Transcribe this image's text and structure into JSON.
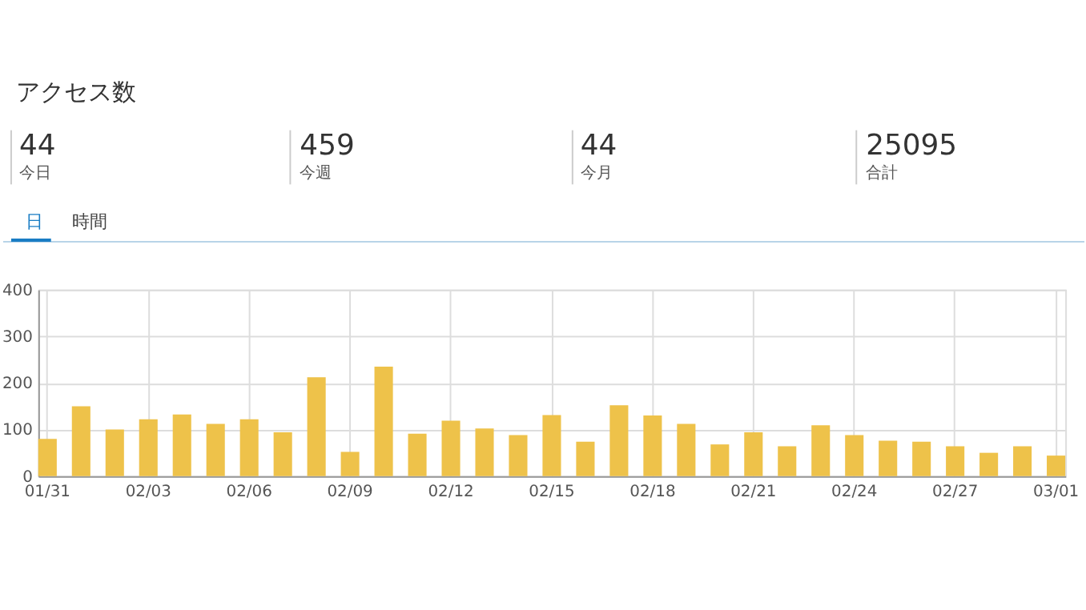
{
  "chart_data": {
    "type": "bar",
    "title": "アクセス数",
    "annotations": [
      "44",
      "今日",
      "459",
      "今週",
      "44",
      "今月",
      "25095",
      "合計",
      "日",
      "時間"
    ],
    "categories": [
      "01/31",
      null,
      null,
      "02/03",
      null,
      null,
      "02/06",
      null,
      null,
      "02/09",
      null,
      null,
      "02/12",
      null,
      null,
      "02/15",
      null,
      null,
      "02/18",
      null,
      null,
      "02/21",
      null,
      null,
      "02/24",
      null,
      null,
      "02/27",
      null,
      null,
      "03/01"
    ],
    "values": [
      80,
      150,
      100,
      122,
      132,
      112,
      122,
      94,
      212,
      52,
      235,
      91,
      119,
      102,
      88,
      131,
      74,
      152,
      130,
      112,
      68,
      94,
      64,
      109,
      88,
      76,
      74,
      64,
      50,
      64,
      44
    ],
    "color": "#eec24a",
    "ylim": [
      0,
      400
    ],
    "yticks": [
      0,
      100,
      200,
      300,
      400
    ],
    "grid": true
  }
}
